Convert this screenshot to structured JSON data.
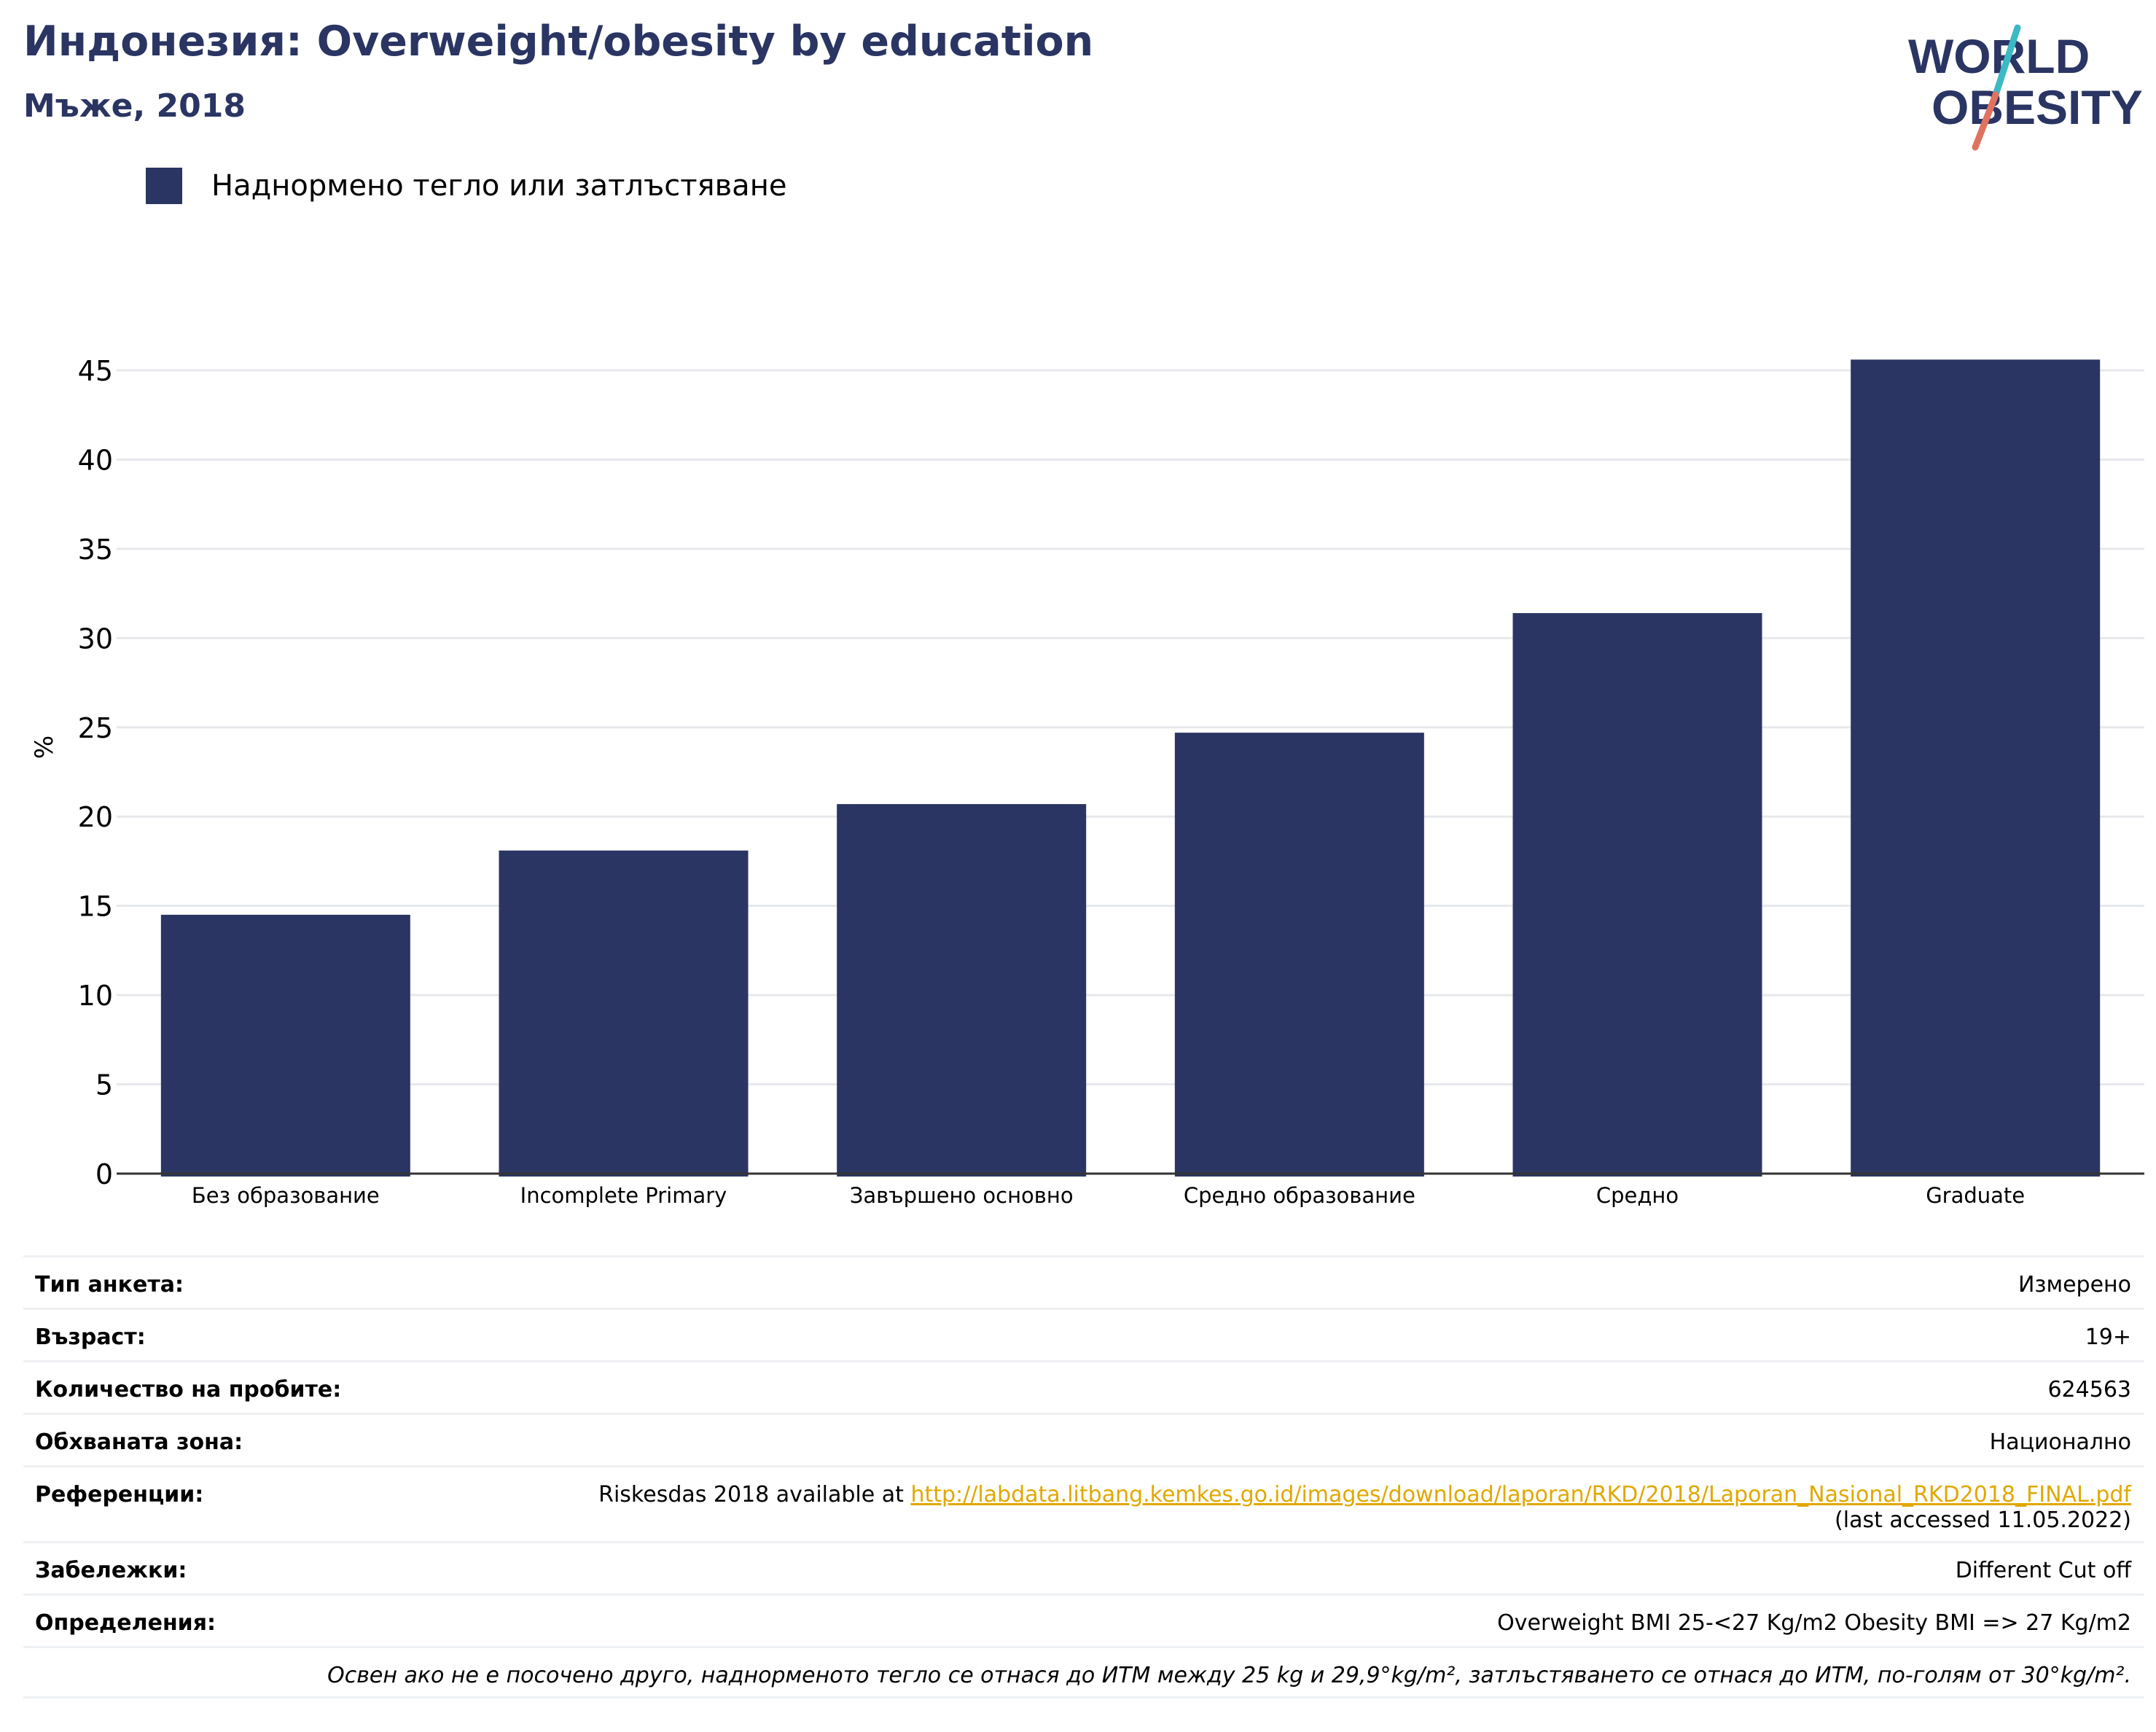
{
  "header": {
    "title": "Индонезия: Overweight/obesity by education",
    "subtitle": "Мъже, 2018"
  },
  "logo": {
    "line1": "WORLD",
    "line2": "OBESITY",
    "colors": {
      "text": "#2a3563",
      "slash_top": "#3bb9c4",
      "slash_bottom": "#e0735f"
    }
  },
  "colors": {
    "bar": "#2a3563",
    "grid": "#e6e8ec",
    "axis": "#333333",
    "link": "#e0a800"
  },
  "chart_data": {
    "type": "bar",
    "categories": [
      "Без образование",
      "Incomplete Primary",
      "Завършено основно",
      "Средно образование",
      "Средно",
      "Graduate"
    ],
    "series": [
      {
        "name": "Наднормено тегло или затлъстяване",
        "values": [
          14.5,
          18.1,
          20.7,
          24.7,
          31.4,
          45.6
        ]
      }
    ],
    "ylabel": "%",
    "xlabel": "",
    "ylim": [
      0,
      45
    ],
    "yticks": [
      0,
      5,
      10,
      15,
      20,
      25,
      30,
      35,
      40,
      45
    ],
    "grid": true,
    "legend_position": "top-left"
  },
  "info": {
    "survey_type": {
      "label": "Тип анкета:",
      "value": "Измерено"
    },
    "age": {
      "label": "Възраст:",
      "value": "19+"
    },
    "sample_size": {
      "label": "Количество на пробите:",
      "value": "624563"
    },
    "area": {
      "label": "Обхваната зона:",
      "value": "Национално"
    },
    "references": {
      "label": "Референции:",
      "prefix": "Riskesdas 2018 available at ",
      "link": "http://labdata.litbang.kemkes.go.id/images/download/laporan/RKD/2018/Laporan_Nasional_RKD2018_FINAL.pdf",
      "suffix": "(last accessed 11.05.2022)"
    },
    "notes": {
      "label": "Забележки:",
      "value": "Different Cut off"
    },
    "definitions": {
      "label": "Определения:",
      "value": "Overweight BMI 25-<27 Kg/m2 Obesity BMI => 27 Kg/m2"
    },
    "footnote": "Освен ако не е посочено друго, наднорменото тегло се отнася до ИТМ между 25 kg и 29,9°kg/m², затлъстяването се отнася до ИТМ, по-голям от 30°kg/m²."
  }
}
